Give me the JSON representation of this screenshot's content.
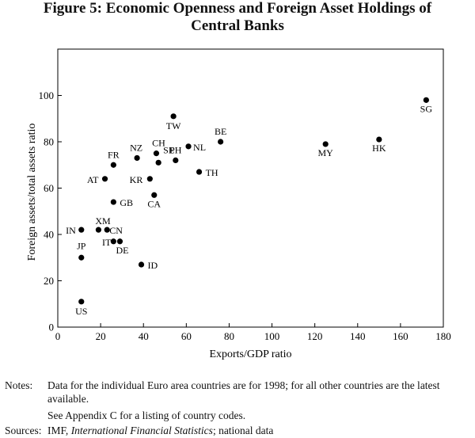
{
  "figure": {
    "title_line1": "Figure 5: Economic Openness and Foreign Asset Holdings of",
    "title_line2": "Central Banks"
  },
  "chart_data": {
    "type": "scatter",
    "title": "Figure 5: Economic Openness and Foreign Asset Holdings of Central Banks",
    "xlabel": "Exports/GDP ratio",
    "ylabel": "Foreign assets/total assets ratio",
    "xlim": [
      0,
      180
    ],
    "ylim": [
      0,
      120
    ],
    "xticks": [
      0,
      20,
      40,
      60,
      80,
      100,
      120,
      140,
      160,
      180
    ],
    "yticks": [
      0,
      20,
      40,
      60,
      80,
      100
    ],
    "grid": false,
    "points": [
      {
        "label": "US",
        "x": 11,
        "y": 11
      },
      {
        "label": "JP",
        "x": 11,
        "y": 30
      },
      {
        "label": "IN",
        "x": 11,
        "y": 42
      },
      {
        "label": "XM",
        "x": 19,
        "y": 42
      },
      {
        "label": "CN",
        "x": 23,
        "y": 42
      },
      {
        "label": "IT",
        "x": 26,
        "y": 37
      },
      {
        "label": "DE",
        "x": 29,
        "y": 37
      },
      {
        "label": "ID",
        "x": 39,
        "y": 27
      },
      {
        "label": "AT",
        "x": 22,
        "y": 64
      },
      {
        "label": "FR",
        "x": 26,
        "y": 70
      },
      {
        "label": "GB",
        "x": 26,
        "y": 54
      },
      {
        "label": "NZ",
        "x": 37,
        "y": 73
      },
      {
        "label": "KR",
        "x": 43,
        "y": 64
      },
      {
        "label": "CA",
        "x": 45,
        "y": 57
      },
      {
        "label": "CH",
        "x": 46,
        "y": 75
      },
      {
        "label": "SE",
        "x": 47,
        "y": 71
      },
      {
        "label": "TW",
        "x": 54,
        "y": 91
      },
      {
        "label": "PH",
        "x": 55,
        "y": 72
      },
      {
        "label": "NL",
        "x": 61,
        "y": 78
      },
      {
        "label": "TH",
        "x": 66,
        "y": 67
      },
      {
        "label": "BE",
        "x": 76,
        "y": 80
      },
      {
        "label": "MY",
        "x": 125,
        "y": 79
      },
      {
        "label": "HK",
        "x": 150,
        "y": 81
      },
      {
        "label": "SG",
        "x": 172,
        "y": 98
      }
    ]
  },
  "notes": {
    "label": "Notes:",
    "line1": "Data for the individual Euro area countries are for 1998; for all other countries are the latest",
    "line2": "available.",
    "line3": "See Appendix C for a listing of country codes."
  },
  "sources": {
    "label": "Sources:",
    "prefix": "IMF,",
    "italic": "International Financial Statistics",
    "suffix": "; national data"
  }
}
